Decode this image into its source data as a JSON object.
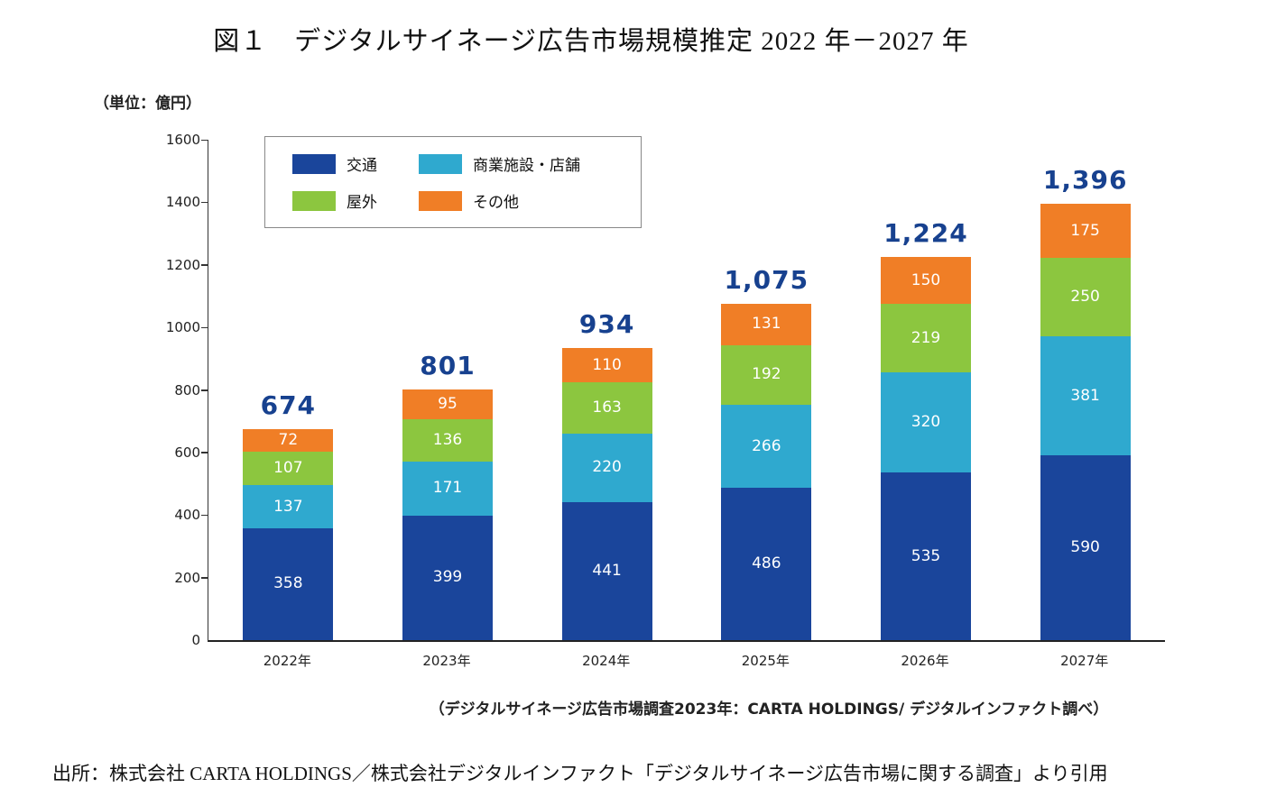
{
  "title": "図１　デジタルサイネージ広告市場規模推定 2022 年－2027 年",
  "unit_label": "（単位：億円）",
  "caption": "（デジタルサイネージ広告市場調査2023年：CARTA HOLDINGS/ デジタルインファクト調べ）",
  "source": "出所：株式会社 CARTA HOLDINGS／株式会社デジタルインファクト「デジタルサイネージ広告市場に関する調査」より引用",
  "colors": {
    "traffic_blue": "#1a459b",
    "commercial_cyan": "#2fa9cf",
    "outdoor_green": "#8cc63f",
    "other_orange": "#f07e26",
    "total_label": "#17418f"
  },
  "chart_data": {
    "type": "bar",
    "stacked": true,
    "title": "図１　デジタルサイネージ広告市場規模推定 2022 年－2027 年",
    "ylabel": "（単位：億円）",
    "categories": [
      "2022年",
      "2023年",
      "2024年",
      "2025年",
      "2026年",
      "2027年"
    ],
    "series": [
      {
        "name": "交通",
        "color": "#1a459b",
        "values": [
          358,
          399,
          441,
          486,
          535,
          590
        ]
      },
      {
        "name": "商業施設・店舗",
        "color": "#2fa9cf",
        "values": [
          137,
          171,
          220,
          266,
          320,
          381
        ]
      },
      {
        "name": "屋外",
        "color": "#8cc63f",
        "values": [
          107,
          136,
          163,
          192,
          219,
          250
        ]
      },
      {
        "name": "その他",
        "color": "#f07e26",
        "values": [
          72,
          95,
          110,
          131,
          150,
          175
        ]
      }
    ],
    "totals": [
      674,
      801,
      934,
      1075,
      1224,
      1396
    ],
    "total_labels": [
      "674",
      "801",
      "934",
      "1,075",
      "1,224",
      "1,396"
    ],
    "ylim": [
      0,
      1600
    ],
    "ytick_interval": 200,
    "ytick_labels": [
      "0",
      "200",
      "400",
      "600",
      "800",
      "1000",
      "1200",
      "1400",
      "1600"
    ],
    "grid": false,
    "legend_position": "top-left"
  }
}
